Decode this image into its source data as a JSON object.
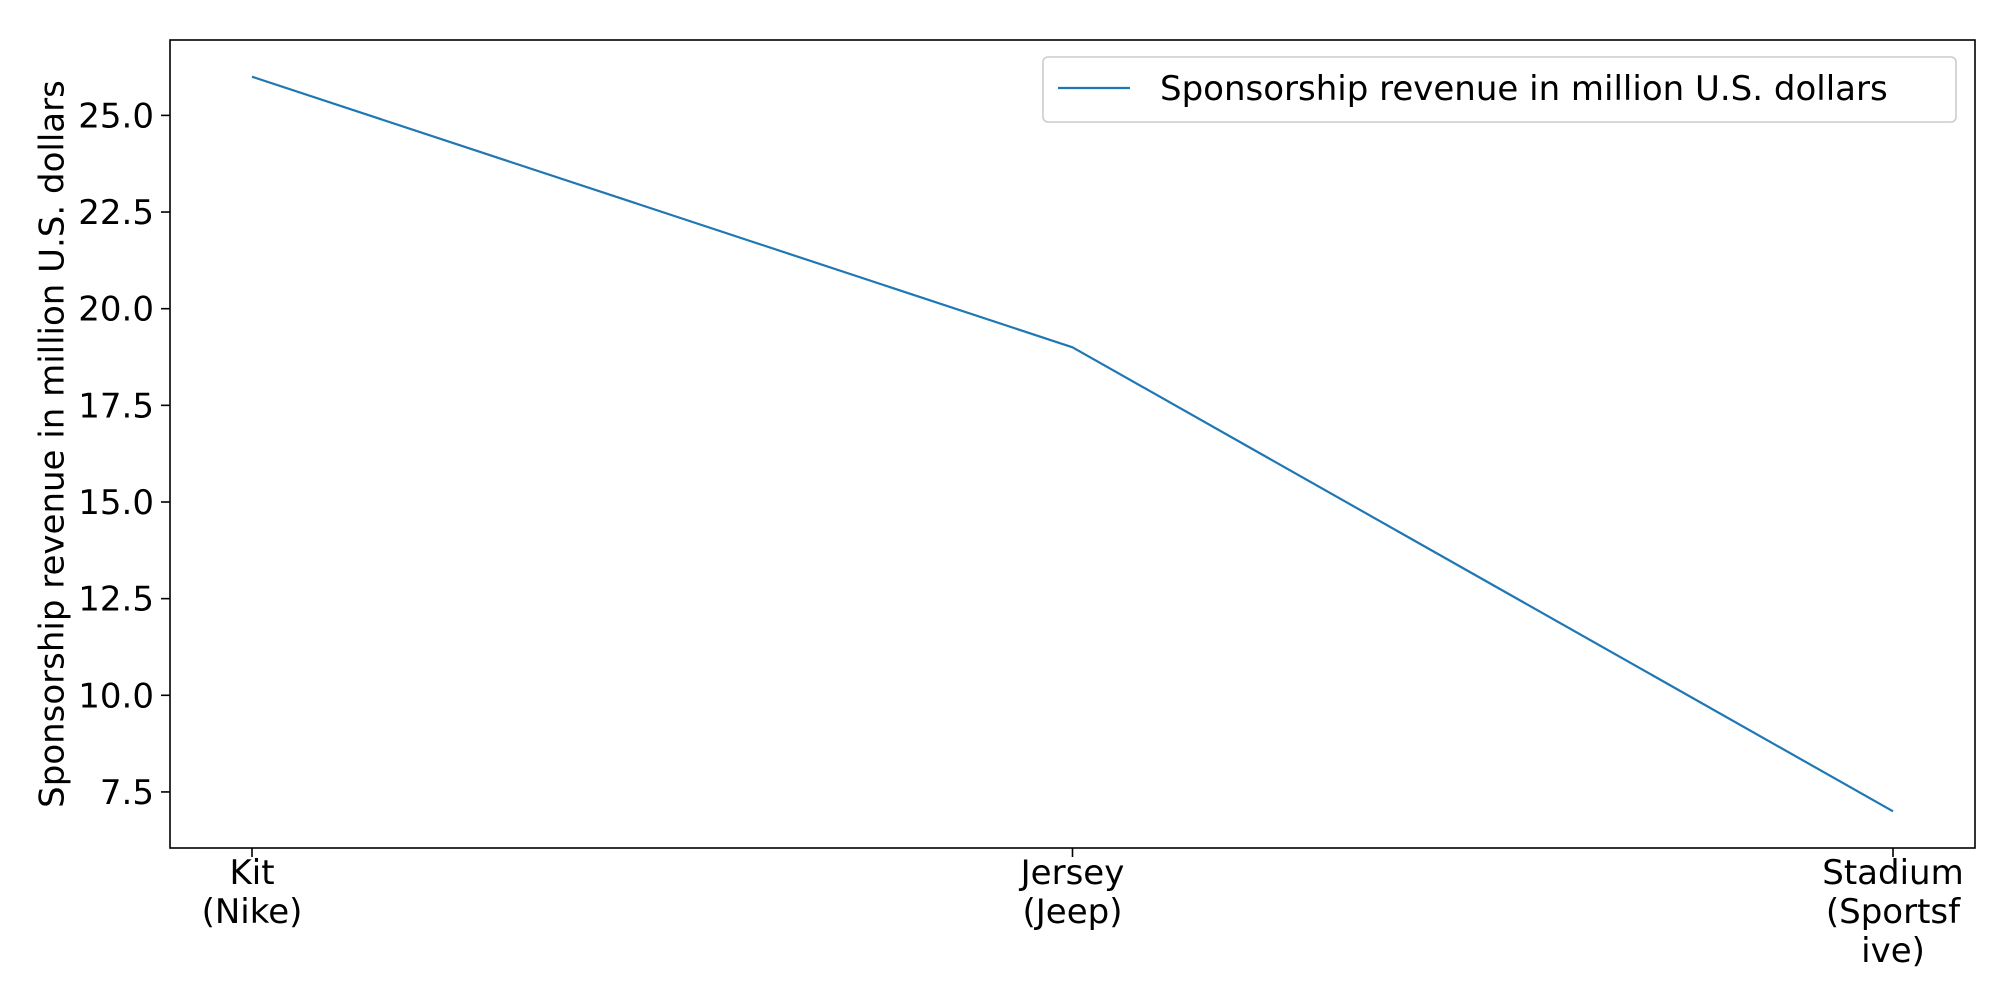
{
  "chart_data": {
    "type": "line",
    "categories": [
      "Kit\n(Nike)",
      "Jersey\n(Jeep)",
      "Stadium\n(Sportsf\nive)"
    ],
    "series": [
      {
        "name": "Sponsorship revenue in million U.S. dollars",
        "values": [
          26,
          19,
          7
        ],
        "color": "#1f77b4"
      }
    ],
    "title": "",
    "xlabel": "",
    "ylabel": "Sponsorship revenue in million U.S. dollars",
    "ylim": [
      6.05,
      26.95
    ],
    "yticks": [
      "7.5",
      "10.0",
      "12.5",
      "15.0",
      "17.5",
      "20.0",
      "22.5",
      "25.0"
    ],
    "grid": false,
    "legend_position": "upper right"
  }
}
